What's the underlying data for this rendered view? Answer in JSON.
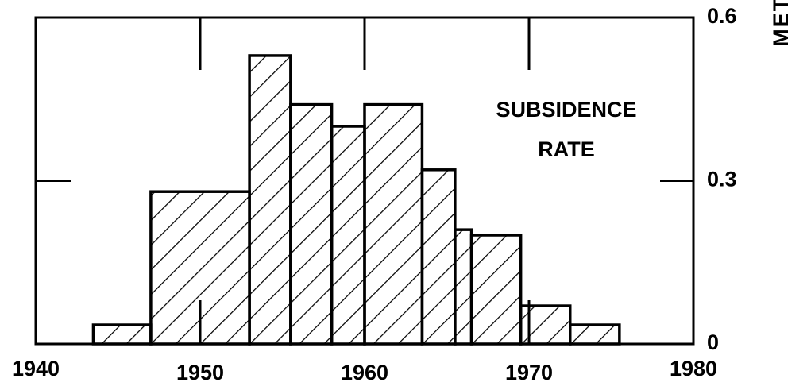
{
  "chart_data": {
    "type": "histogram",
    "annotation": [
      "SUBSIDENCE",
      "RATE"
    ],
    "y_label": "METRES PER YEAR",
    "bins": [
      1943.5,
      1947,
      1953,
      1955.5,
      1958,
      1960,
      1963.5,
      1965.5,
      1966.5,
      1969.5,
      1972.5,
      1975.5
    ],
    "counts": [
      0.035,
      0.28,
      0.53,
      0.44,
      0.4,
      0.44,
      0.32,
      0.21,
      0.2,
      0.07,
      0.035
    ],
    "color": "#000000",
    "xlim": [
      1940,
      1980
    ],
    "xticks": [
      1940,
      1950,
      1960,
      1970,
      1980
    ],
    "ylim": [
      0,
      0.6
    ],
    "yticks": [
      0,
      0.3,
      0.6
    ],
    "y_axis_side": "right",
    "hatch": true
  }
}
